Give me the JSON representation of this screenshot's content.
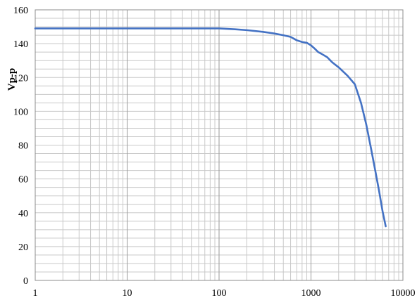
{
  "chart_data": {
    "type": "line",
    "title": "",
    "xlabel": "",
    "ylabel": "Vp-p",
    "xscale": "log",
    "xlim": [
      1,
      10000
    ],
    "ylim": [
      0,
      160
    ],
    "x_ticks": [
      "1",
      "10",
      "100",
      "1000",
      "10000"
    ],
    "y_ticks": [
      "0",
      "20",
      "40",
      "60",
      "80",
      "100",
      "120",
      "140",
      "160"
    ],
    "y_minor_step": 5,
    "grid": true,
    "legend": "none",
    "series": [
      {
        "color": "#4472C4",
        "x": [
          1,
          10,
          50,
          100,
          150,
          200,
          300,
          400,
          500,
          600,
          700,
          800,
          900,
          1000,
          1100,
          1200,
          1300,
          1500,
          1700,
          2000,
          2500,
          3000,
          3500,
          4000,
          4500,
          5000,
          5500,
          6000,
          6500
        ],
        "y": [
          149,
          149,
          149,
          149,
          148.5,
          148,
          147,
          146,
          145,
          144,
          142,
          141,
          140.5,
          139,
          137,
          135,
          134,
          132,
          129,
          126,
          121,
          116,
          105,
          92,
          78,
          65,
          53,
          41,
          32
        ]
      }
    ]
  }
}
